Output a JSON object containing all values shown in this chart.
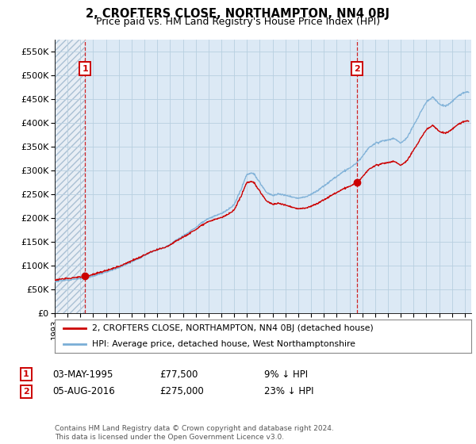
{
  "title": "2, CROFTERS CLOSE, NORTHAMPTON, NN4 0BJ",
  "subtitle": "Price paid vs. HM Land Registry's House Price Index (HPI)",
  "background_color": "#dce9f5",
  "hatch_color": "#b8cfe0",
  "grid_color": "#b8cfe0",
  "sale1_date": 1995.37,
  "sale1_price": 77500,
  "sale2_date": 2016.58,
  "sale2_price": 275000,
  "ylim": [
    0,
    575000
  ],
  "xlim": [
    1993.0,
    2025.5
  ],
  "yticks": [
    0,
    50000,
    100000,
    150000,
    200000,
    250000,
    300000,
    350000,
    400000,
    450000,
    500000,
    550000
  ],
  "ytick_labels": [
    "£0",
    "£50K",
    "£100K",
    "£150K",
    "£200K",
    "£250K",
    "£300K",
    "£350K",
    "£400K",
    "£450K",
    "£500K",
    "£550K"
  ],
  "legend_line1": "2, CROFTERS CLOSE, NORTHAMPTON, NN4 0BJ (detached house)",
  "legend_line2": "HPI: Average price, detached house, West Northamptonshire",
  "footer": "Contains HM Land Registry data © Crown copyright and database right 2024.\nThis data is licensed under the Open Government Licence v3.0.",
  "red_color": "#cc0000",
  "blue_color": "#7aaed6",
  "hpi_years": [
    1993.0,
    1993.5,
    1994.0,
    1994.5,
    1995.0,
    1995.5,
    1996.0,
    1996.5,
    1997.0,
    1997.5,
    1998.0,
    1998.5,
    1999.0,
    1999.5,
    2000.0,
    2000.5,
    2001.0,
    2001.5,
    2002.0,
    2002.5,
    2003.0,
    2003.5,
    2004.0,
    2004.5,
    2005.0,
    2005.5,
    2006.0,
    2006.5,
    2007.0,
    2007.5,
    2008.0,
    2008.5,
    2009.0,
    2009.5,
    2010.0,
    2010.5,
    2011.0,
    2011.5,
    2012.0,
    2012.5,
    2013.0,
    2013.5,
    2014.0,
    2014.5,
    2015.0,
    2015.5,
    2016.0,
    2016.5,
    2017.0,
    2017.5,
    2018.0,
    2018.5,
    2019.0,
    2019.5,
    2020.0,
    2020.5,
    2021.0,
    2021.5,
    2022.0,
    2022.5,
    2023.0,
    2023.5,
    2024.0,
    2024.5,
    2025.0
  ],
  "hpi_prices": [
    66000,
    67500,
    69000,
    71000,
    72500,
    75000,
    78000,
    82000,
    86000,
    91000,
    96000,
    102000,
    108000,
    114000,
    121000,
    128000,
    133000,
    138000,
    145000,
    155000,
    163000,
    172000,
    181000,
    192000,
    200000,
    205000,
    210000,
    218000,
    228000,
    258000,
    293000,
    295000,
    275000,
    255000,
    248000,
    252000,
    248000,
    245000,
    242000,
    245000,
    250000,
    258000,
    268000,
    278000,
    288000,
    298000,
    305000,
    315000,
    330000,
    348000,
    358000,
    362000,
    365000,
    368000,
    358000,
    370000,
    395000,
    420000,
    445000,
    455000,
    440000,
    435000,
    445000,
    458000,
    465000
  ]
}
